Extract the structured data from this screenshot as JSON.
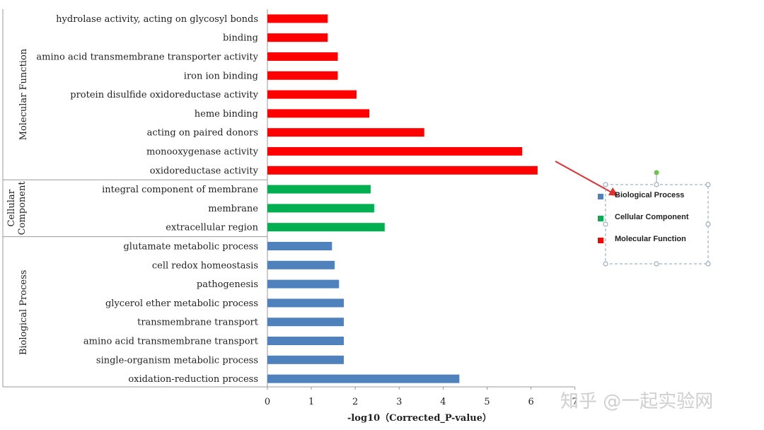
{
  "chart_data": {
    "type": "bar",
    "orientation": "horizontal",
    "xlabel": "-log10（Corrected_P-value）",
    "xlim": [
      0,
      7
    ],
    "xticks": [
      0,
      1,
      2,
      3,
      4,
      5,
      6,
      7
    ],
    "grid": false,
    "legend_position": "right",
    "groups": [
      {
        "name": "Molecular Function",
        "color": "#ff0000",
        "categories": [
          "hydrolase activity, acting on glycosyl bonds",
          "binding",
          "amino acid transmembrane transporter activity",
          "iron ion binding",
          "protein disulfide oxidoreductase activity",
          "heme binding",
          "acting on paired donors",
          "monooxygenase activity",
          "oxidoreductase activity"
        ],
        "values": [
          1.37,
          1.37,
          1.6,
          1.6,
          2.03,
          2.32,
          3.57,
          5.8,
          6.15
        ]
      },
      {
        "name": "Cellular Component",
        "color": "#00b050",
        "categories": [
          "integral component of membrane",
          "membrane",
          "extracellular region"
        ],
        "values": [
          2.35,
          2.43,
          2.67
        ]
      },
      {
        "name": "Biological Process",
        "color": "#4f81bd",
        "categories": [
          "glutamate metabolic process",
          "cell redox homeostasis",
          "pathogenesis",
          "glycerol ether metabolic process",
          "transmembrane transport",
          "amino acid transmembrane transport",
          "single-organism metabolic process",
          "oxidation-reduction process"
        ],
        "values": [
          1.47,
          1.53,
          1.63,
          1.74,
          1.74,
          1.74,
          1.74,
          4.37
        ]
      }
    ],
    "group_labels": [
      {
        "lines": [
          "Molecular Function"
        ]
      },
      {
        "lines": [
          "Cellular",
          "Component"
        ]
      },
      {
        "lines": [
          "Biological Process"
        ]
      }
    ],
    "legend": [
      {
        "label": "Biological Process",
        "color": "#4f81bd"
      },
      {
        "label": "Cellular Component",
        "color": "#00b050"
      },
      {
        "label": "Molecular Function",
        "color": "#ff0000"
      }
    ]
  },
  "watermark": "知乎 @一起实验网"
}
